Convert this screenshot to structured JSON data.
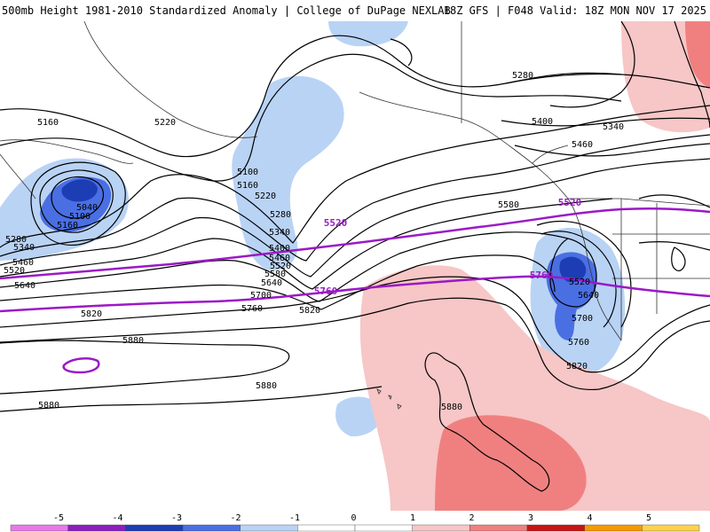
{
  "header": {
    "title_left": "500mb Height 1981-2010 Standardized Anomaly | College of DuPage NEXLAB",
    "title_right": "18Z GFS | F048 Valid: 18Z MON NOV 17 2025"
  },
  "colors": {
    "neg5": "#e879e8",
    "neg4": "#8a1fbf",
    "neg3": "#1d3db5",
    "neg2": "#4a6fe3",
    "neg1": "#b9d3f5",
    "zero": "#ffffff",
    "pos1": "#f7c6c6",
    "pos2": "#f08080",
    "pos3": "#c81414",
    "pos4": "#f59a00",
    "pos5": "#ffd24d",
    "contour": "#000000",
    "highlight": "#9b19c6",
    "coast": "#333333"
  },
  "contour_labels": [
    {
      "id": "c5160a",
      "text": "5160"
    },
    {
      "id": "c5220a",
      "text": "5220"
    },
    {
      "id": "c5040a",
      "text": "5040"
    },
    {
      "id": "c5100a",
      "text": "5100"
    },
    {
      "id": "c5160b",
      "text": "5160"
    },
    {
      "id": "c5280a",
      "text": "5280"
    },
    {
      "id": "c5340a",
      "text": "5340"
    },
    {
      "id": "c5460a",
      "text": "5460"
    },
    {
      "id": "c5520a",
      "text": "5520"
    },
    {
      "id": "c5640a",
      "text": "5640"
    },
    {
      "id": "c5820a",
      "text": "5820"
    },
    {
      "id": "c5880a",
      "text": "5880"
    },
    {
      "id": "c5880b",
      "text": "5880"
    },
    {
      "id": "c5100b",
      "text": "5100"
    },
    {
      "id": "c5160c",
      "text": "5160"
    },
    {
      "id": "c5220b",
      "text": "5220"
    },
    {
      "id": "c5280b",
      "text": "5280"
    },
    {
      "id": "c5340b",
      "text": "5340"
    },
    {
      "id": "c5400a",
      "text": "5400"
    },
    {
      "id": "c5460b",
      "text": "5460"
    },
    {
      "id": "c5520b",
      "text": "5520"
    },
    {
      "id": "c5580a",
      "text": "5580"
    },
    {
      "id": "c5640b",
      "text": "5640"
    },
    {
      "id": "c5700a",
      "text": "5700"
    },
    {
      "id": "c5760a",
      "text": "5760"
    },
    {
      "id": "c5820b",
      "text": "5820"
    },
    {
      "id": "c5880c",
      "text": "5880"
    },
    {
      "id": "c5280c",
      "text": "5280"
    },
    {
      "id": "c5400b",
      "text": "5400"
    },
    {
      "id": "c5340c",
      "text": "5340"
    },
    {
      "id": "c5460c",
      "text": "5460"
    },
    {
      "id": "c5580b",
      "text": "5580"
    },
    {
      "id": "c5520c",
      "text": "5520"
    },
    {
      "id": "c5640c",
      "text": "5640"
    },
    {
      "id": "c5700b",
      "text": "5700"
    },
    {
      "id": "c5760b",
      "text": "5760"
    },
    {
      "id": "c5820c",
      "text": "5820"
    }
  ],
  "highlight_labels": [
    {
      "id": "h5520a",
      "text": "5520"
    },
    {
      "id": "h5520b",
      "text": "5520"
    },
    {
      "id": "h5760a",
      "text": "5760"
    },
    {
      "id": "h5760b",
      "text": "5760"
    }
  ],
  "colorbar": {
    "ticks": [
      "-5",
      "-4",
      "-3",
      "-2",
      "-1",
      "0",
      "1",
      "2",
      "3",
      "4",
      "5"
    ]
  }
}
